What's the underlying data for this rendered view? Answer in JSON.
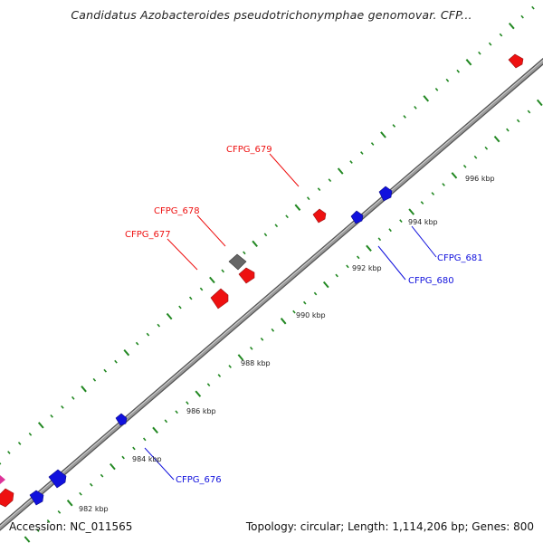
{
  "title": "Candidatus Azobacteroides pseudotrichonymphae genomovar. CFP...",
  "footer": {
    "accession": "Accession: NC_011565",
    "summary": "Topology: circular; Length: 1,114,206 bp; Genes: 800"
  },
  "colors": {
    "forward_gene": "#ee1111",
    "reverse_gene": "#1111dd",
    "unknown_gene": "#666666",
    "tick": "#228822",
    "backbone": "#888888"
  },
  "tick_labels": [
    "982 kbp",
    "984 kbp",
    "986 kbp",
    "988 kbp",
    "990 kbp",
    "992 kbp",
    "994 kbp",
    "996 kbp"
  ],
  "gene_labels": [
    {
      "id": "g677",
      "text": "CFPG_677",
      "strand": "forward"
    },
    {
      "id": "g678",
      "text": "CFPG_678",
      "strand": "forward"
    },
    {
      "id": "g679",
      "text": "CFPG_679",
      "strand": "forward"
    },
    {
      "id": "g680",
      "text": "CFPG_680",
      "strand": "reverse"
    },
    {
      "id": "g681",
      "text": "CFPG_681",
      "strand": "reverse"
    },
    {
      "id": "g676",
      "text": "CFPG_676",
      "strand": "reverse"
    }
  ]
}
